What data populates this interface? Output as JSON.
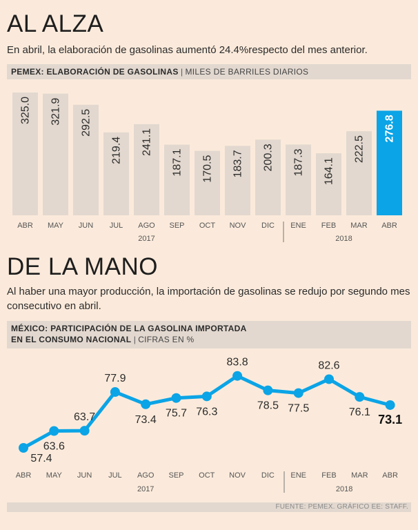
{
  "section1": {
    "title": "AL ALZA",
    "subtitle": "En abril, la elaboración de gasolinas aumentó 24.4%respecto del mes anterior.",
    "header_bold": "PEMEX: ELABORACIÓN DE GASOLINAS",
    "header_unit": "MILES DE BARRILES DIARIOS"
  },
  "section2": {
    "title": "DE LA MANO",
    "subtitle": "Al haber una mayor producción, la importación de gasolinas se redujo por segundo mes consecutivo en abril.",
    "header_bold_line1": "MÉXICO: PARTICIPACIÓN DE LA GASOLINA IMPORTADA",
    "header_bold_line2": "EN EL CONSUMO NACIONAL",
    "header_unit": "CIFRAS EN %"
  },
  "footer": {
    "source": "FUENTE: PEMEX.  GRÁFICO EE: STAFF."
  },
  "colors": {
    "bar": "#e2d8cf",
    "highlight": "#0ba4e6",
    "line": "#0ba4e6",
    "label": "#2b2b2b"
  },
  "chart_data": [
    {
      "type": "bar",
      "title": "PEMEX: ELABORACIÓN DE GASOLINAS",
      "ylabel": "MILES DE BARRILES DIARIOS",
      "categories": [
        "ABR",
        "MAY",
        "JUN",
        "JUL",
        "AGO",
        "SEP",
        "OCT",
        "NOV",
        "DIC",
        "ENE",
        "FEB",
        "MAR",
        "ABR"
      ],
      "values": [
        325.0,
        321.9,
        292.5,
        219.4,
        241.1,
        187.1,
        170.5,
        183.7,
        200.3,
        187.3,
        164.1,
        222.5,
        276.8
      ],
      "labels": [
        "325.0",
        "321.9",
        "292.5",
        "219.4",
        "241.1",
        "187.1",
        "170.5",
        "183.7",
        "200.3",
        "187.3",
        "164.1",
        "222.5",
        "276.8"
      ],
      "highlight_index": 12,
      "years": [
        {
          "label": "2017",
          "from": 0,
          "to": 8
        },
        {
          "label": "2018",
          "from": 9,
          "to": 12
        }
      ],
      "ylim": [
        0,
        325
      ]
    },
    {
      "type": "line",
      "title": "MÉXICO: PARTICIPACIÓN DE LA GASOLINA IMPORTADA EN EL CONSUMO NACIONAL",
      "ylabel": "CIFRAS EN %",
      "categories": [
        "ABR",
        "MAY",
        "JUN",
        "JUL",
        "AGO",
        "SEP",
        "OCT",
        "NOV",
        "DIC",
        "ENE",
        "FEB",
        "MAR",
        "ABR"
      ],
      "values": [
        57.4,
        63.6,
        63.7,
        77.9,
        73.4,
        75.7,
        76.3,
        83.8,
        78.5,
        77.5,
        82.6,
        76.1,
        73.1
      ],
      "labels": [
        "57.4",
        "63.6",
        "63.7",
        "77.9",
        "73.4",
        "75.7",
        "76.3",
        "83.8",
        "78.5",
        "77.5",
        "82.6",
        "76.1",
        "73.1"
      ],
      "label_side": [
        "below",
        "below",
        "above",
        "above",
        "below",
        "below",
        "below",
        "above",
        "below",
        "below",
        "above",
        "below",
        "below"
      ],
      "highlight_index": 12,
      "years": [
        {
          "label": "2017",
          "from": 0,
          "to": 8
        },
        {
          "label": "2018",
          "from": 9,
          "to": 12
        }
      ],
      "ylim": [
        55,
        85
      ]
    }
  ]
}
